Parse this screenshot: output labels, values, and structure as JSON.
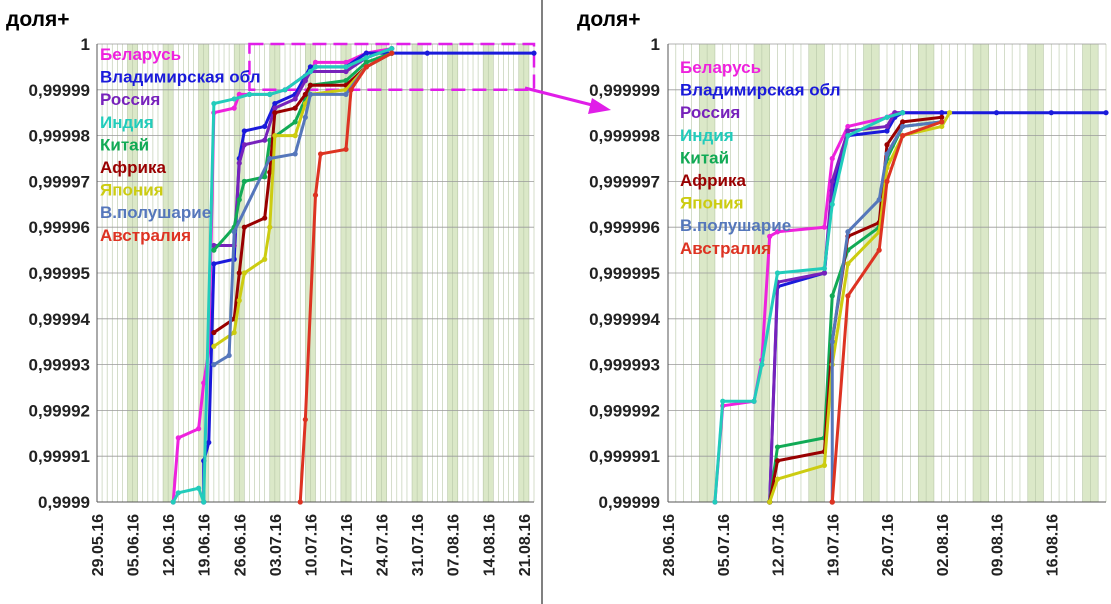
{
  "chart_data": [
    {
      "type": "line",
      "title": "доля+",
      "y_ticks": [
        "1",
        "0,99999",
        "0,99998",
        "0,99997",
        "0,99996",
        "0,99995",
        "0,99994",
        "0,99993",
        "0,99992",
        "0,99991",
        "0,9999"
      ],
      "x_ticks": [
        "29.05.16",
        "05.06.16",
        "12.06.16",
        "19.06.16",
        "26.06.16",
        "03.07.16",
        "10.07.16",
        "17.07.16",
        "24.07.16",
        "31.07.16",
        "07.08.16",
        "14.08.16",
        "21.08.16"
      ],
      "ylim": [
        0.9999,
        1.0
      ],
      "x_range": [
        "29.05.16",
        "23.08.16"
      ],
      "grid": true,
      "legend_placement": "top-left",
      "series": [
        {
          "name": "Беларусь",
          "color": "#ee22dd",
          "points": [
            [
              "13.06.16",
              0.9999
            ],
            [
              "14.06.16",
              0.999914
            ],
            [
              "18.06.16",
              0.999916
            ],
            [
              "19.06.16",
              0.999926
            ],
            [
              "20.06.16",
              0.999933
            ],
            [
              "21.06.16",
              0.999985
            ],
            [
              "25.06.16",
              0.999986
            ],
            [
              "26.06.16",
              0.999989
            ],
            [
              "28.06.16",
              0.999989
            ],
            [
              "02.07.16",
              0.999989
            ],
            [
              "05.07.16",
              0.99999
            ],
            [
              "10.07.16",
              0.999994
            ],
            [
              "11.07.16",
              0.999996
            ],
            [
              "17.07.16",
              0.999996
            ],
            [
              "21.07.16",
              0.999998
            ],
            [
              "26.07.16",
              0.999999
            ]
          ]
        },
        {
          "name": "Владимирская обл",
          "color": "#1a1adb",
          "points": [
            [
              "19.06.16",
              0.9999
            ],
            [
              "19.06.16",
              0.999909
            ],
            [
              "20.06.16",
              0.999913
            ],
            [
              "21.06.16",
              0.999952
            ],
            [
              "25.06.16",
              0.999953
            ],
            [
              "26.06.16",
              0.999975
            ],
            [
              "27.06.16",
              0.999981
            ],
            [
              "01.07.16",
              0.999982
            ],
            [
              "03.07.16",
              0.999987
            ],
            [
              "07.07.16",
              0.999989
            ],
            [
              "09.07.16",
              0.999993
            ],
            [
              "10.07.16",
              0.999995
            ],
            [
              "17.07.16",
              0.999995
            ],
            [
              "21.07.16",
              0.999998
            ],
            [
              "26.07.16",
              0.999998
            ],
            [
              "02.08.16",
              0.999998
            ],
            [
              "23.08.16",
              0.999998
            ]
          ]
        },
        {
          "name": "Россия",
          "color": "#7722bb",
          "points": [
            [
              "21.06.16",
              0.999956
            ],
            [
              "25.06.16",
              0.999956
            ],
            [
              "26.06.16",
              0.999974
            ],
            [
              "27.06.16",
              0.999978
            ],
            [
              "01.07.16",
              0.999979
            ],
            [
              "03.07.16",
              0.999986
            ],
            [
              "07.07.16",
              0.999988
            ],
            [
              "09.07.16",
              0.999992
            ],
            [
              "10.07.16",
              0.999994
            ],
            [
              "17.07.16",
              0.999994
            ],
            [
              "21.07.16",
              0.999997
            ],
            [
              "26.07.16",
              0.999999
            ]
          ]
        },
        {
          "name": "Индия",
          "color": "#22ccbb",
          "points": [
            [
              "13.06.16",
              0.9999
            ],
            [
              "14.06.16",
              0.999902
            ],
            [
              "18.06.16",
              0.999903
            ],
            [
              "19.06.16",
              0.9999
            ],
            [
              "21.06.16",
              0.999987
            ],
            [
              "25.06.16",
              0.999988
            ],
            [
              "28.06.16",
              0.999989
            ],
            [
              "02.07.16",
              0.999989
            ],
            [
              "05.07.16",
              0.99999
            ],
            [
              "10.07.16",
              0.999994
            ],
            [
              "11.07.16",
              0.999995
            ],
            [
              "17.07.16",
              0.999995
            ],
            [
              "21.07.16",
              0.999997
            ],
            [
              "26.07.16",
              0.999999
            ]
          ]
        },
        {
          "name": "Китай",
          "color": "#11aa55",
          "points": [
            [
              "21.06.16",
              0.999955
            ],
            [
              "25.06.16",
              0.99996
            ],
            [
              "26.06.16",
              0.999966
            ],
            [
              "27.06.16",
              0.99997
            ],
            [
              "01.07.16",
              0.999971
            ],
            [
              "02.07.16",
              0.999979
            ],
            [
              "07.07.16",
              0.999983
            ],
            [
              "09.07.16",
              0.999988
            ],
            [
              "10.07.16",
              0.999991
            ],
            [
              "17.07.16",
              0.999992
            ],
            [
              "21.07.16",
              0.999996
            ],
            [
              "26.07.16",
              0.999998
            ]
          ]
        },
        {
          "name": "Африка",
          "color": "#990000",
          "points": [
            [
              "21.06.16",
              0.999937
            ],
            [
              "25.06.16",
              0.99994
            ],
            [
              "26.06.16",
              0.99995
            ],
            [
              "27.06.16",
              0.99996
            ],
            [
              "01.07.16",
              0.999962
            ],
            [
              "02.07.16",
              0.999972
            ],
            [
              "03.07.16",
              0.999985
            ],
            [
              "07.07.16",
              0.999986
            ],
            [
              "09.07.16",
              0.999989
            ],
            [
              "10.07.16",
              0.999991
            ],
            [
              "17.07.16",
              0.999991
            ],
            [
              "21.07.16",
              0.999995
            ],
            [
              "26.07.16",
              0.999998
            ]
          ]
        },
        {
          "name": "Япония",
          "color": "#cccc11",
          "points": [
            [
              "21.06.16",
              0.999934
            ],
            [
              "25.06.16",
              0.999937
            ],
            [
              "26.06.16",
              0.999944
            ],
            [
              "27.06.16",
              0.99995
            ],
            [
              "01.07.16",
              0.999953
            ],
            [
              "02.07.16",
              0.99996
            ],
            [
              "03.07.16",
              0.99998
            ],
            [
              "07.07.16",
              0.99998
            ],
            [
              "09.07.16",
              0.999987
            ],
            [
              "10.07.16",
              0.999989
            ],
            [
              "17.07.16",
              0.99999
            ],
            [
              "21.07.16",
              0.999995
            ],
            [
              "26.07.16",
              0.999998
            ]
          ]
        },
        {
          "name": "В.полушарие",
          "color": "#5577bb",
          "points": [
            [
              "21.06.16",
              0.99993
            ],
            [
              "24.06.16",
              0.999932
            ],
            [
              "25.06.16",
              0.999959
            ],
            [
              "02.07.16",
              0.999975
            ],
            [
              "07.07.16",
              0.999976
            ],
            [
              "09.07.16",
              0.999984
            ],
            [
              "10.07.16",
              0.999989
            ],
            [
              "17.07.16",
              0.999989
            ],
            [
              "21.07.16",
              0.999995
            ],
            [
              "26.07.16",
              0.999998
            ]
          ]
        },
        {
          "name": "Австралия",
          "color": "#dd3322",
          "points": [
            [
              "08.07.16",
              0.9999
            ],
            [
              "09.07.16",
              0.999918
            ],
            [
              "11.07.16",
              0.999967
            ],
            [
              "12.07.16",
              0.999976
            ],
            [
              "17.07.16",
              0.999977
            ],
            [
              "18.07.16",
              0.99999
            ],
            [
              "21.07.16",
              0.999995
            ],
            [
              "26.07.16",
              0.999998
            ]
          ]
        }
      ]
    },
    {
      "type": "line",
      "title": "доля+",
      "y_ticks": [
        "1",
        "0,999999",
        "0,999998",
        "0,999997",
        "0,999996",
        "0,999995",
        "0,999994",
        "0,999993",
        "0,999992",
        "0,999991",
        "0,99999"
      ],
      "x_ticks": [
        "28.06.16",
        "05.07.16",
        "12.07.16",
        "19.07.16",
        "26.07.16",
        "02.08.16",
        "09.08.16",
        "16.08.16"
      ],
      "ylim": [
        0.99999,
        1.0
      ],
      "x_range": [
        "28.06.16",
        "23.08.16"
      ],
      "grid": true,
      "legend_placement": "top-left",
      "series": [
        {
          "name": "Беларусь",
          "color": "#ee22dd",
          "points": [
            [
              "04.07.16",
              0.99999
            ],
            [
              "05.07.16",
              0.9999921
            ],
            [
              "09.07.16",
              0.9999922
            ],
            [
              "10.07.16",
              0.9999931
            ],
            [
              "11.07.16",
              0.9999958
            ],
            [
              "12.07.16",
              0.9999959
            ],
            [
              "18.07.16",
              0.999996
            ],
            [
              "19.07.16",
              0.9999975
            ],
            [
              "21.07.16",
              0.9999982
            ],
            [
              "26.07.16",
              0.9999984
            ],
            [
              "27.07.16",
              0.9999985
            ],
            [
              "02.08.16",
              0.9999985
            ]
          ]
        },
        {
          "name": "Владимирская обл",
          "color": "#1a1adb",
          "points": [
            [
              "11.07.16",
              0.99999
            ],
            [
              "12.07.16",
              0.9999947
            ],
            [
              "18.07.16",
              0.999995
            ],
            [
              "19.07.16",
              0.9999968
            ],
            [
              "21.07.16",
              0.999998
            ],
            [
              "26.07.16",
              0.9999981
            ],
            [
              "27.07.16",
              0.9999984
            ],
            [
              "28.07.16",
              0.9999985
            ],
            [
              "02.08.16",
              0.9999985
            ],
            [
              "09.08.16",
              0.9999985
            ],
            [
              "16.08.16",
              0.9999985
            ],
            [
              "23.08.16",
              0.9999985
            ]
          ]
        },
        {
          "name": "Россия",
          "color": "#7722bb",
          "points": [
            [
              "11.07.16",
              0.99999
            ],
            [
              "12.07.16",
              0.9999948
            ],
            [
              "18.07.16",
              0.999995
            ],
            [
              "19.07.16",
              0.999997
            ],
            [
              "21.07.16",
              0.9999981
            ],
            [
              "26.07.16",
              0.9999982
            ],
            [
              "27.07.16",
              0.9999985
            ],
            [
              "28.07.16",
              0.9999985
            ]
          ]
        },
        {
          "name": "Индия",
          "color": "#22ccbb",
          "points": [
            [
              "04.07.16",
              0.99999
            ],
            [
              "05.07.16",
              0.9999922
            ],
            [
              "09.07.16",
              0.9999922
            ],
            [
              "10.07.16",
              0.999993
            ],
            [
              "12.07.16",
              0.999995
            ],
            [
              "18.07.16",
              0.9999951
            ],
            [
              "19.07.16",
              0.9999965
            ],
            [
              "21.07.16",
              0.999998
            ],
            [
              "26.07.16",
              0.9999984
            ],
            [
              "28.07.16",
              0.9999985
            ]
          ]
        },
        {
          "name": "Китай",
          "color": "#11aa55",
          "points": [
            [
              "11.07.16",
              0.99999
            ],
            [
              "12.07.16",
              0.9999912
            ],
            [
              "18.07.16",
              0.9999914
            ],
            [
              "19.07.16",
              0.9999945
            ],
            [
              "21.07.16",
              0.9999955
            ],
            [
              "25.07.16",
              0.999996
            ],
            [
              "26.07.16",
              0.9999975
            ],
            [
              "28.07.16",
              0.9999982
            ],
            [
              "02.08.16",
              0.9999983
            ]
          ]
        },
        {
          "name": "Африка",
          "color": "#990000",
          "points": [
            [
              "11.07.16",
              0.99999
            ],
            [
              "12.07.16",
              0.9999909
            ],
            [
              "18.07.16",
              0.9999911
            ],
            [
              "19.07.16",
              0.9999935
            ],
            [
              "21.07.16",
              0.9999958
            ],
            [
              "25.07.16",
              0.9999961
            ],
            [
              "26.07.16",
              0.9999978
            ],
            [
              "28.07.16",
              0.9999983
            ],
            [
              "02.08.16",
              0.9999984
            ]
          ]
        },
        {
          "name": "Япония",
          "color": "#cccc11",
          "points": [
            [
              "11.07.16",
              0.99999
            ],
            [
              "12.07.16",
              0.9999905
            ],
            [
              "18.07.16",
              0.9999908
            ],
            [
              "19.07.16",
              0.999993
            ],
            [
              "21.07.16",
              0.9999952
            ],
            [
              "25.07.16",
              0.9999959
            ],
            [
              "26.07.16",
              0.9999973
            ],
            [
              "28.07.16",
              0.999998
            ],
            [
              "02.08.16",
              0.9999982
            ],
            [
              "03.08.16",
              0.9999985
            ]
          ]
        },
        {
          "name": "В.полушарие",
          "color": "#5577bb",
          "points": [
            [
              "19.07.16",
              0.99999
            ],
            [
              "19.07.16",
              0.9999935
            ],
            [
              "21.07.16",
              0.9999959
            ],
            [
              "25.07.16",
              0.9999966
            ],
            [
              "26.07.16",
              0.9999976
            ],
            [
              "28.07.16",
              0.9999982
            ],
            [
              "02.08.16",
              0.9999983
            ]
          ]
        },
        {
          "name": "Австралия",
          "color": "#dd3322",
          "points": [
            [
              "19.07.16",
              0.99999
            ],
            [
              "19.07.16",
              0.99999
            ],
            [
              "21.07.16",
              0.9999945
            ],
            [
              "25.07.16",
              0.9999955
            ],
            [
              "26.07.16",
              0.999997
            ],
            [
              "28.07.16",
              0.999998
            ],
            [
              "02.08.16",
              0.9999983
            ]
          ]
        }
      ]
    }
  ]
}
